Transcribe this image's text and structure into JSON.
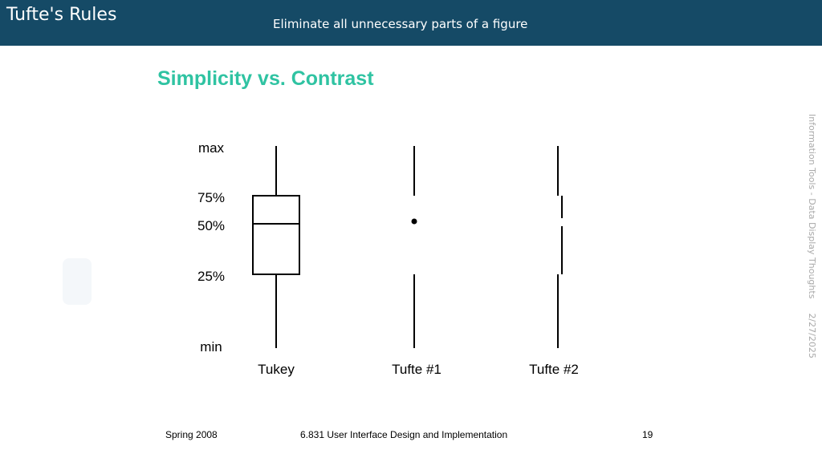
{
  "header": {
    "title": "Tufte's Rules",
    "subtitle": "Eliminate all unnecessary parts of a figure"
  },
  "slide": {
    "heading": "Simplicity vs. Contrast"
  },
  "diagram": {
    "levels": [
      "max",
      "75%",
      "50%",
      "25%",
      "min"
    ],
    "plots": [
      {
        "label": "Tukey",
        "style": "box"
      },
      {
        "label": "Tufte #1",
        "style": "dot"
      },
      {
        "label": "Tufte #2",
        "style": "offset"
      }
    ]
  },
  "side_note": {
    "course": "Information Tools - Data Display Thoughts",
    "date": "2/27/2025"
  },
  "footer": {
    "left": "Spring 2008",
    "center": "6.831 User Interface Design and Implementation",
    "page": "19"
  },
  "colors": {
    "header_bg": "#154a66",
    "heading": "#2fc3a2",
    "side_note": "#a9a9a9",
    "stroke": "#000000"
  }
}
